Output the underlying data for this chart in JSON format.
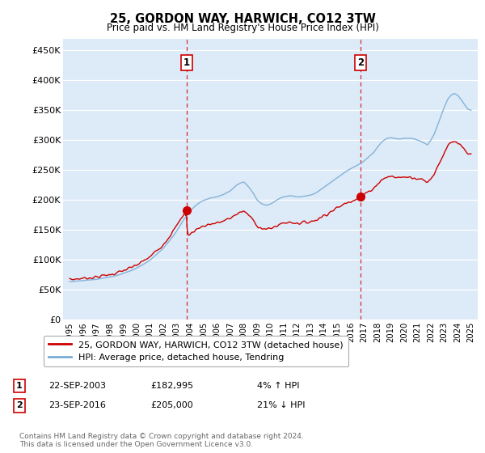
{
  "title": "25, GORDON WAY, HARWICH, CO12 3TW",
  "subtitle": "Price paid vs. HM Land Registry's House Price Index (HPI)",
  "footnote": "Contains HM Land Registry data © Crown copyright and database right 2024.\nThis data is licensed under the Open Government Licence v3.0.",
  "legend_line1": "25, GORDON WAY, HARWICH, CO12 3TW (detached house)",
  "legend_line2": "HPI: Average price, detached house, Tendring",
  "annotation1": {
    "label": "1",
    "date": "22-SEP-2003",
    "price": "£182,995",
    "hpi": "4% ↑ HPI"
  },
  "annotation2": {
    "label": "2",
    "date": "23-SEP-2016",
    "price": "£205,000",
    "hpi": "21% ↓ HPI"
  },
  "ylabel_ticks": [
    "£0",
    "£50K",
    "£100K",
    "£150K",
    "£200K",
    "£250K",
    "£300K",
    "£350K",
    "£400K",
    "£450K"
  ],
  "ytick_values": [
    0,
    50000,
    100000,
    150000,
    200000,
    250000,
    300000,
    350000,
    400000,
    450000
  ],
  "ylim": [
    0,
    470000
  ],
  "bg_color": "#ddeaf7",
  "red_color": "#cc0000",
  "blue_color": "#7aadd4",
  "vline_color": "#cc0000",
  "marker1_x": 2003.72,
  "marker1_y": 182995,
  "marker2_x": 2016.72,
  "marker2_y": 205000,
  "vline1_x": 2003.72,
  "vline2_x": 2016.72,
  "xmin": 1994.5,
  "xmax": 2025.5,
  "xtick_years": [
    1995,
    1996,
    1997,
    1998,
    1999,
    2000,
    2001,
    2002,
    2003,
    2004,
    2005,
    2006,
    2007,
    2008,
    2009,
    2010,
    2011,
    2012,
    2013,
    2014,
    2015,
    2016,
    2017,
    2018,
    2019,
    2020,
    2021,
    2022,
    2023,
    2024,
    2025
  ],
  "hpi_years": [
    1995,
    1995.25,
    1995.5,
    1995.75,
    1996,
    1996.25,
    1996.5,
    1996.75,
    1997,
    1997.25,
    1997.5,
    1997.75,
    1998,
    1998.25,
    1998.5,
    1998.75,
    1999,
    1999.25,
    1999.5,
    1999.75,
    2000,
    2000.25,
    2000.5,
    2000.75,
    2001,
    2001.25,
    2001.5,
    2001.75,
    2002,
    2002.25,
    2002.5,
    2002.75,
    2003,
    2003.25,
    2003.5,
    2003.75,
    2004,
    2004.25,
    2004.5,
    2004.75,
    2005,
    2005.25,
    2005.5,
    2005.75,
    2006,
    2006.25,
    2006.5,
    2006.75,
    2007,
    2007.25,
    2007.5,
    2007.75,
    2008,
    2008.25,
    2008.5,
    2008.75,
    2009,
    2009.25,
    2009.5,
    2009.75,
    2010,
    2010.25,
    2010.5,
    2010.75,
    2011,
    2011.25,
    2011.5,
    2011.75,
    2012,
    2012.25,
    2012.5,
    2012.75,
    2013,
    2013.25,
    2013.5,
    2013.75,
    2014,
    2014.25,
    2014.5,
    2014.75,
    2015,
    2015.25,
    2015.5,
    2015.75,
    2016,
    2016.25,
    2016.5,
    2016.75,
    2017,
    2017.25,
    2017.5,
    2017.75,
    2018,
    2018.25,
    2018.5,
    2018.75,
    2019,
    2019.25,
    2019.5,
    2019.75,
    2020,
    2020.25,
    2020.5,
    2020.75,
    2021,
    2021.25,
    2021.5,
    2021.75,
    2022,
    2022.25,
    2022.5,
    2022.75,
    2023,
    2023.25,
    2023.5,
    2023.75,
    2024,
    2024.25,
    2024.5,
    2024.75,
    2025
  ],
  "hpi_values": [
    63000,
    63500,
    64000,
    64500,
    65000,
    65500,
    66000,
    66500,
    67000,
    68000,
    69000,
    70000,
    71000,
    72000,
    73500,
    75000,
    77000,
    79000,
    81000,
    83000,
    86000,
    89000,
    92000,
    95500,
    99000,
    104000,
    109000,
    114000,
    119000,
    126000,
    133000,
    140000,
    148000,
    157000,
    166000,
    174000,
    181000,
    187000,
    192000,
    196000,
    199000,
    201000,
    203000,
    204000,
    205000,
    207000,
    209000,
    212000,
    215000,
    220000,
    225000,
    228000,
    230000,
    225000,
    218000,
    210000,
    200000,
    195000,
    192000,
    191000,
    193000,
    196000,
    200000,
    203000,
    205000,
    206000,
    207000,
    206000,
    205000,
    205000,
    206000,
    207000,
    208000,
    210000,
    213000,
    217000,
    221000,
    225000,
    229000,
    233000,
    237000,
    241000,
    245000,
    249000,
    252000,
    255000,
    258000,
    261000,
    265000,
    270000,
    275000,
    280000,
    288000,
    295000,
    300000,
    303000,
    304000,
    303000,
    302000,
    302000,
    303000,
    303000,
    303000,
    302000,
    300000,
    298000,
    295000,
    292000,
    300000,
    310000,
    325000,
    340000,
    355000,
    368000,
    375000,
    378000,
    375000,
    368000,
    360000,
    352000,
    350000
  ]
}
